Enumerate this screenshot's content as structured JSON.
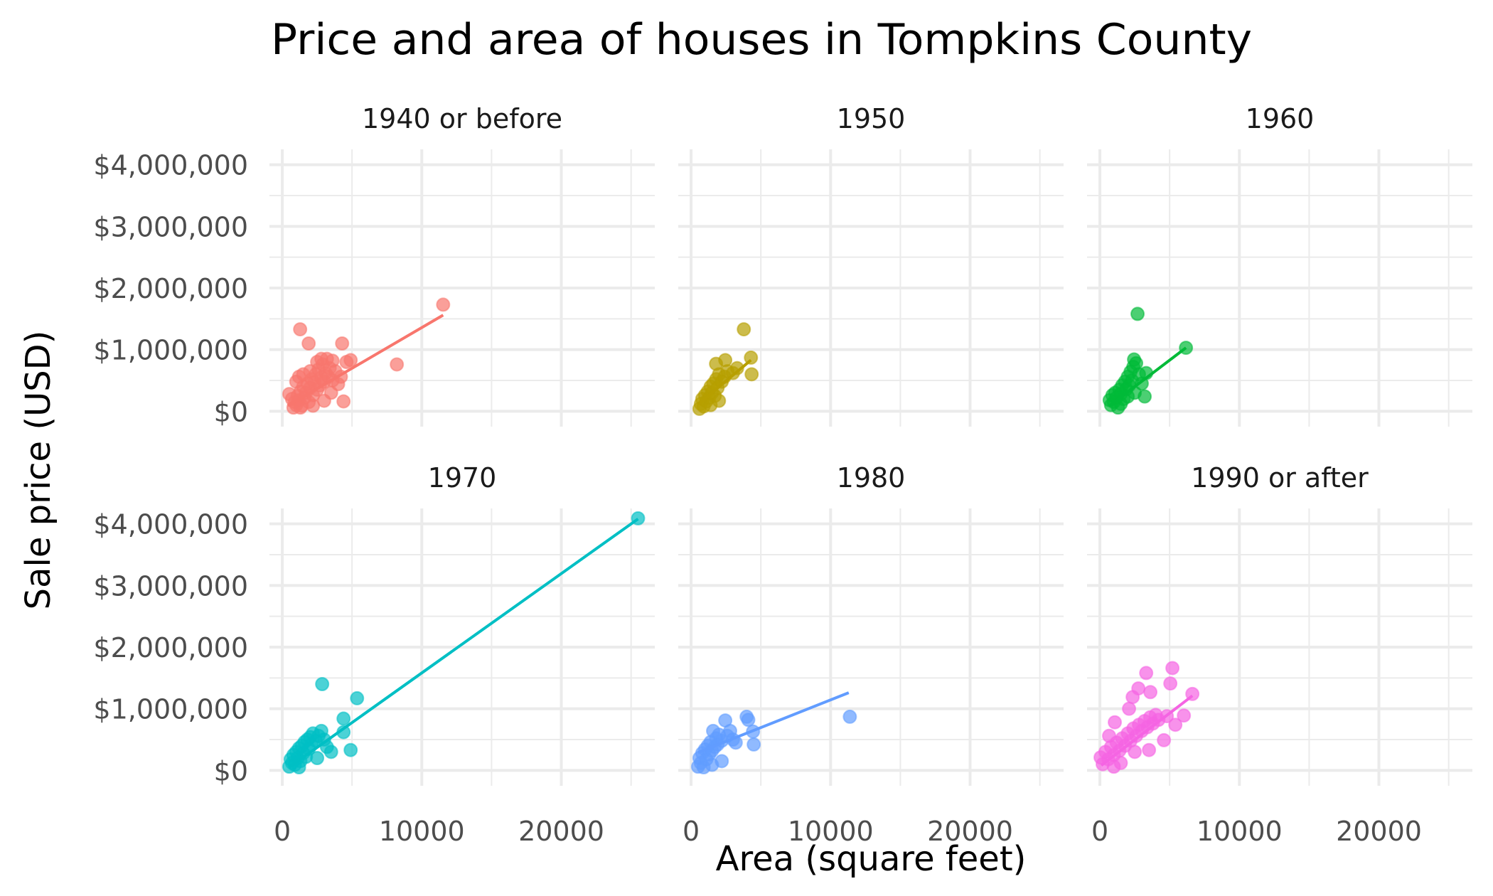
{
  "chart_data": {
    "type": "scatter",
    "title": "Price and area of houses in Tompkins County",
    "xlabel": "Area (square feet)",
    "ylabel": "Sale price (USD)",
    "xlim": [
      -920,
      26700
    ],
    "ylim": [
      -250000,
      4250000
    ],
    "grid": true,
    "legend": "none",
    "x_major_ticks": [
      0,
      10000,
      20000
    ],
    "x_minor_ticks": [
      5000,
      15000,
      25000
    ],
    "x_tick_labels": [
      "0",
      "10000",
      "20000"
    ],
    "y_major_ticks": [
      0,
      1000000,
      2000000,
      3000000,
      4000000
    ],
    "y_minor_ticks": [
      500000,
      1500000,
      2500000,
      3500000
    ],
    "y_tick_labels": [
      "$0",
      "$1,000,000",
      "$2,000,000",
      "$3,000,000",
      "$4,000,000"
    ],
    "facets": [
      {
        "name": "1940 or before",
        "color": "#F8766D",
        "points": [
          [
            800,
            60000
          ],
          [
            900,
            150000
          ],
          [
            1000,
            100000
          ],
          [
            1100,
            250000
          ],
          [
            1200,
            180000
          ],
          [
            1300,
            320000
          ],
          [
            1400,
            90000
          ],
          [
            1500,
            400000
          ],
          [
            1600,
            220000
          ],
          [
            1700,
            300000
          ],
          [
            1800,
            450000
          ],
          [
            1900,
            150000
          ],
          [
            2000,
            380000
          ],
          [
            2100,
            520000
          ],
          [
            2200,
            260000
          ],
          [
            2300,
            470000
          ],
          [
            2400,
            600000
          ],
          [
            2500,
            350000
          ],
          [
            2600,
            680000
          ],
          [
            2700,
            420000
          ],
          [
            2800,
            550000
          ],
          [
            2900,
            760000
          ],
          [
            3000,
            480000
          ],
          [
            3100,
            620000
          ],
          [
            3200,
            850000
          ],
          [
            3300,
            560000
          ],
          [
            3400,
            700000
          ],
          [
            3600,
            500000
          ],
          [
            3800,
            650000
          ],
          [
            4000,
            440000
          ],
          [
            4200,
            560000
          ],
          [
            500,
            280000
          ],
          [
            700,
            200000
          ],
          [
            1200,
            560000
          ],
          [
            1000,
            480000
          ],
          [
            1500,
            600000
          ],
          [
            2000,
            650000
          ],
          [
            2500,
            800000
          ],
          [
            2800,
            850000
          ],
          [
            3600,
            820000
          ],
          [
            1280,
            1330000
          ],
          [
            1890,
            1100000
          ],
          [
            4290,
            1100000
          ],
          [
            4900,
            830000
          ],
          [
            4600,
            800000
          ],
          [
            4390,
            160000
          ],
          [
            8210,
            760000
          ],
          [
            11530,
            1730000
          ],
          [
            1300,
            60000
          ],
          [
            2200,
            90000
          ],
          [
            3000,
            170000
          ],
          [
            3500,
            300000
          ]
        ],
        "fit_line": [
          [
            400,
            90000
          ],
          [
            11530,
            1560000
          ]
        ]
      },
      {
        "name": "1950",
        "color": "#B79F00",
        "points": [
          [
            600,
            40000
          ],
          [
            700,
            120000
          ],
          [
            800,
            200000
          ],
          [
            900,
            80000
          ],
          [
            1000,
            260000
          ],
          [
            1100,
            160000
          ],
          [
            1200,
            320000
          ],
          [
            1300,
            220000
          ],
          [
            1400,
            400000
          ],
          [
            1500,
            300000
          ],
          [
            1600,
            450000
          ],
          [
            1700,
            250000
          ],
          [
            1800,
            520000
          ],
          [
            1900,
            380000
          ],
          [
            2000,
            600000
          ],
          [
            2200,
            480000
          ],
          [
            2400,
            560000
          ],
          [
            2600,
            650000
          ],
          [
            1790,
            770000
          ],
          [
            2450,
            830000
          ],
          [
            3000,
            620000
          ],
          [
            3300,
            700000
          ],
          [
            3780,
            1330000
          ],
          [
            4290,
            870000
          ],
          [
            4340,
            600000
          ],
          [
            1400,
            100000
          ],
          [
            2000,
            170000
          ]
        ],
        "fit_line": [
          [
            600,
            130000
          ],
          [
            4290,
            830000
          ]
        ]
      },
      {
        "name": "1960",
        "color": "#00BA38",
        "points": [
          [
            700,
            180000
          ],
          [
            800,
            100000
          ],
          [
            900,
            260000
          ],
          [
            1000,
            150000
          ],
          [
            1100,
            300000
          ],
          [
            1200,
            220000
          ],
          [
            1300,
            60000
          ],
          [
            1400,
            350000
          ],
          [
            1500,
            280000
          ],
          [
            1600,
            420000
          ],
          [
            1700,
            200000
          ],
          [
            1800,
            480000
          ],
          [
            1900,
            360000
          ],
          [
            2000,
            560000
          ],
          [
            2100,
            420000
          ],
          [
            2200,
            640000
          ],
          [
            2300,
            500000
          ],
          [
            2400,
            720000
          ],
          [
            2450,
            840000
          ],
          [
            2600,
            780000
          ],
          [
            2800,
            600000
          ],
          [
            3000,
            450000
          ],
          [
            3210,
            240000
          ],
          [
            3320,
            620000
          ],
          [
            2700,
            1580000
          ],
          [
            6170,
            1030000
          ],
          [
            1500,
            120000
          ],
          [
            2000,
            240000
          ],
          [
            2500,
            300000
          ]
        ],
        "fit_line": [
          [
            700,
            90000
          ],
          [
            6170,
            1030000
          ]
        ]
      },
      {
        "name": "1970",
        "color": "#00BFC4",
        "points": [
          [
            500,
            60000
          ],
          [
            600,
            180000
          ],
          [
            700,
            120000
          ],
          [
            800,
            250000
          ],
          [
            900,
            90000
          ],
          [
            1000,
            300000
          ],
          [
            1100,
            200000
          ],
          [
            1200,
            360000
          ],
          [
            1300,
            150000
          ],
          [
            1400,
            400000
          ],
          [
            1500,
            280000
          ],
          [
            1600,
            460000
          ],
          [
            1700,
            220000
          ],
          [
            1800,
            500000
          ],
          [
            1900,
            350000
          ],
          [
            2000,
            540000
          ],
          [
            2100,
            420000
          ],
          [
            2200,
            600000
          ],
          [
            2400,
            480000
          ],
          [
            2600,
            560000
          ],
          [
            2800,
            640000
          ],
          [
            3000,
            500000
          ],
          [
            3200,
            380000
          ],
          [
            3500,
            300000
          ],
          [
            2500,
            200000
          ],
          [
            2860,
            1400000
          ],
          [
            5360,
            1170000
          ],
          [
            4390,
            840000
          ],
          [
            4390,
            620000
          ],
          [
            4900,
            330000
          ],
          [
            25500,
            4090000
          ],
          [
            1200,
            50000
          ]
        ],
        "fit_line": [
          [
            500,
            50000
          ],
          [
            25500,
            4080000
          ]
        ]
      },
      {
        "name": "1980",
        "color": "#619CFF",
        "points": [
          [
            500,
            60000
          ],
          [
            600,
            200000
          ],
          [
            700,
            120000
          ],
          [
            800,
            280000
          ],
          [
            900,
            50000
          ],
          [
            1000,
            340000
          ],
          [
            1100,
            180000
          ],
          [
            1200,
            400000
          ],
          [
            1300,
            260000
          ],
          [
            1400,
            460000
          ],
          [
            1500,
            320000
          ],
          [
            1580,
            640000
          ],
          [
            1700,
            380000
          ],
          [
            1800,
            520000
          ],
          [
            1900,
            420000
          ],
          [
            2000,
            580000
          ],
          [
            2200,
            480000
          ],
          [
            2450,
            810000
          ],
          [
            2600,
            560000
          ],
          [
            2800,
            640000
          ],
          [
            3000,
            500000
          ],
          [
            3200,
            450000
          ],
          [
            3980,
            870000
          ],
          [
            4100,
            820000
          ],
          [
            4440,
            630000
          ],
          [
            4490,
            420000
          ],
          [
            11380,
            870000
          ],
          [
            1500,
            90000
          ],
          [
            2200,
            150000
          ]
        ],
        "fit_line": [
          [
            500,
            290000
          ],
          [
            11300,
            1260000
          ]
        ]
      },
      {
        "name": "1990 or after",
        "color": "#F564E3",
        "points": [
          [
            50,
            210000
          ],
          [
            200,
            100000
          ],
          [
            400,
            300000
          ],
          [
            600,
            180000
          ],
          [
            660,
            560000
          ],
          [
            800,
            380000
          ],
          [
            1000,
            250000
          ],
          [
            1070,
            780000
          ],
          [
            1200,
            450000
          ],
          [
            1400,
            320000
          ],
          [
            1600,
            520000
          ],
          [
            1800,
            400000
          ],
          [
            2000,
            600000
          ],
          [
            2090,
            1000000
          ],
          [
            2200,
            480000
          ],
          [
            2350,
            1190000
          ],
          [
            2400,
            680000
          ],
          [
            2600,
            560000
          ],
          [
            2760,
            1330000
          ],
          [
            2800,
            740000
          ],
          [
            3000,
            640000
          ],
          [
            3200,
            800000
          ],
          [
            3320,
            1580000
          ],
          [
            3400,
            700000
          ],
          [
            3520,
            330000
          ],
          [
            3600,
            860000
          ],
          [
            3620,
            1270000
          ],
          [
            3800,
            760000
          ],
          [
            4000,
            900000
          ],
          [
            4200,
            820000
          ],
          [
            4590,
            490000
          ],
          [
            4800,
            880000
          ],
          [
            5050,
            1410000
          ],
          [
            5200,
            1660000
          ],
          [
            5410,
            740000
          ],
          [
            6020,
            890000
          ],
          [
            6630,
            1240000
          ],
          [
            1000,
            60000
          ],
          [
            1500,
            120000
          ],
          [
            2500,
            300000
          ]
        ],
        "fit_line": [
          [
            100,
            80000
          ],
          [
            6630,
            1210000
          ]
        ]
      }
    ]
  }
}
